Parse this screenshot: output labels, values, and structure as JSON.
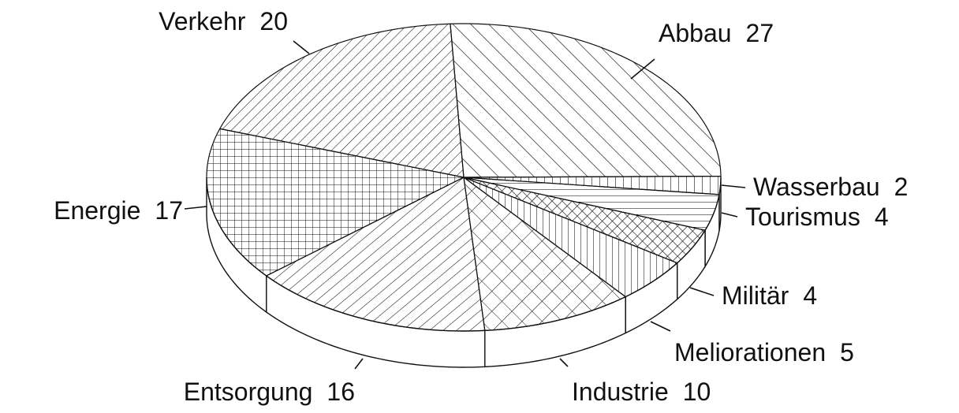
{
  "chart_data": {
    "type": "pie3d",
    "categories": [
      "Abbau",
      "Wasserbau",
      "Tourismus",
      "Militär",
      "Meliorationen",
      "Industrie",
      "Entsorgung",
      "Energie",
      "Verkehr"
    ],
    "values": [
      27,
      2,
      4,
      4,
      5,
      10,
      16,
      17,
      20
    ],
    "color": "#111111"
  }
}
